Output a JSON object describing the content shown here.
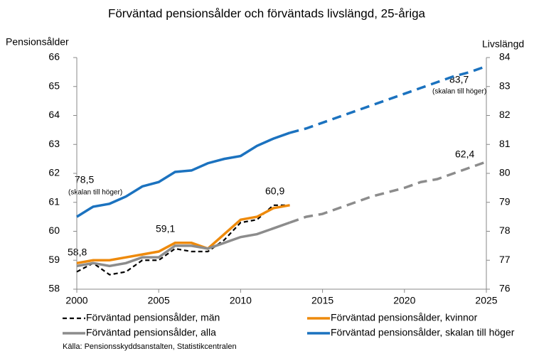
{
  "chart_data": {
    "type": "line",
    "title": "Förväntad pensionsålder och förväntads  livslängd, 25-åriga",
    "y_label": "Pensionsålder",
    "y2_label": "Livslängd",
    "source": "Källa: Pensionsskyddsanstalten, Statistikcentralen",
    "x": [
      2000,
      2001,
      2002,
      2003,
      2004,
      2005,
      2006,
      2007,
      2008,
      2009,
      2010,
      2011,
      2012,
      2013,
      2014,
      2015,
      2016,
      2017,
      2018,
      2019,
      2020,
      2021,
      2022,
      2023,
      2024,
      2025
    ],
    "xlim": [
      2000,
      2025
    ],
    "xticks": [
      2000,
      2005,
      2010,
      2015,
      2020,
      2025
    ],
    "ylim": [
      58,
      66
    ],
    "yticks": [
      58,
      59,
      60,
      61,
      62,
      63,
      64,
      65,
      66
    ],
    "y2lim": [
      76,
      84
    ],
    "y2ticks": [
      76,
      77,
      78,
      79,
      80,
      81,
      82,
      83,
      84
    ],
    "grid": false,
    "series": [
      {
        "name": "Förväntad pensionsålder, män",
        "color": "#000000",
        "dash": true,
        "values": [
          58.6,
          58.9,
          58.5,
          58.6,
          59.0,
          59.0,
          59.4,
          59.3,
          59.3,
          59.7,
          60.3,
          60.4,
          60.9,
          60.9,
          null,
          null,
          null,
          null,
          null,
          null,
          null,
          null,
          null,
          null,
          null,
          null
        ]
      },
      {
        "name": "Förväntad pensionsålder, kvinnor",
        "color": "#ee8a0c",
        "values": [
          58.9,
          59.0,
          59.0,
          59.1,
          59.2,
          59.3,
          59.6,
          59.6,
          59.4,
          59.9,
          60.4,
          60.5,
          60.8,
          60.9,
          null,
          null,
          null,
          null,
          null,
          null,
          null,
          null,
          null,
          null,
          null,
          null
        ]
      },
      {
        "name": "Förväntad pensionsålder, alla",
        "color": "#8c8c8c",
        "values": [
          58.8,
          58.9,
          58.8,
          58.9,
          59.1,
          59.1,
          59.5,
          59.5,
          59.4,
          59.6,
          59.8,
          59.9,
          60.1,
          60.3,
          null,
          null,
          null,
          null,
          null,
          null,
          null,
          null,
          null,
          null,
          null,
          null
        ],
        "projection": [
          null,
          null,
          null,
          null,
          null,
          null,
          null,
          null,
          null,
          null,
          null,
          null,
          null,
          60.3,
          60.5,
          60.6,
          60.8,
          61.0,
          61.2,
          61.35,
          61.5,
          61.7,
          61.8,
          62.0,
          62.2,
          62.4
        ]
      },
      {
        "name": "Förväntad pensionsålder, skalan till höger",
        "color": "#1b72bf",
        "axis": "y2",
        "values": [
          78.5,
          78.85,
          78.95,
          79.2,
          79.55,
          79.7,
          80.05,
          80.1,
          80.35,
          80.5,
          80.6,
          80.95,
          81.2,
          81.4,
          null,
          null,
          null,
          null,
          null,
          null,
          null,
          null,
          null,
          null,
          null,
          null
        ],
        "projection": [
          null,
          null,
          null,
          null,
          null,
          null,
          null,
          null,
          null,
          null,
          null,
          null,
          null,
          81.4,
          81.55,
          81.75,
          81.95,
          82.15,
          82.35,
          82.55,
          82.75,
          82.95,
          83.15,
          83.35,
          83.5,
          83.7
        ]
      }
    ],
    "annotations": [
      "58,8",
      "59,1",
      "60,9",
      "78,5",
      "(skalan till höger)",
      "83,7",
      "(skalan till höger)",
      "62,4"
    ]
  }
}
